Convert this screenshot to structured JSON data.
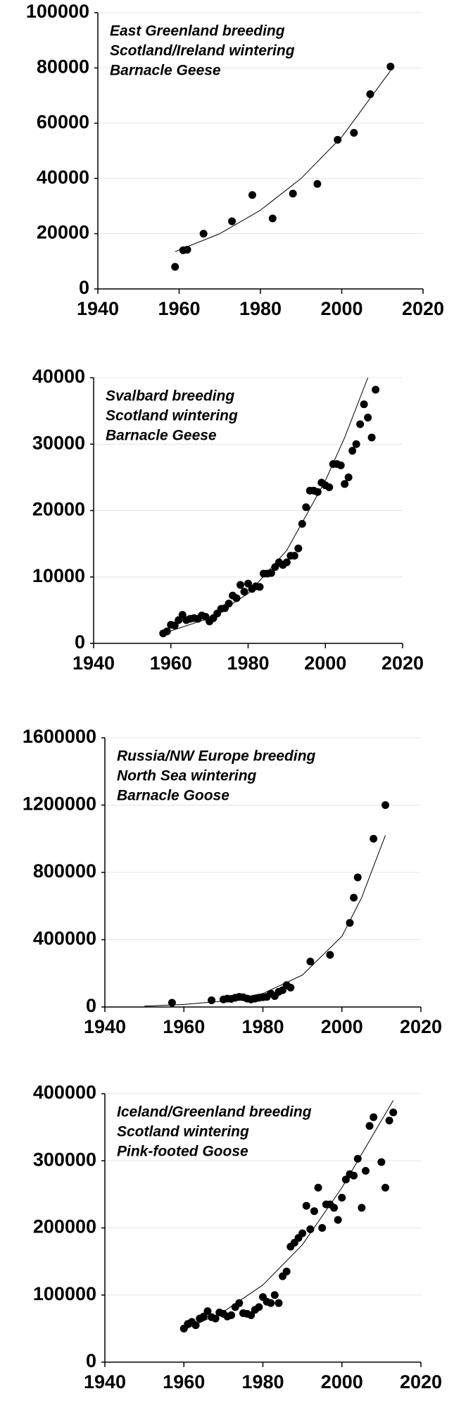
{
  "chart_data": [
    {
      "type": "scatter",
      "annotation": [
        "East Greenland breeding",
        "Scotland/Ireland wintering",
        "Barnacle Geese"
      ],
      "xlim": [
        1940,
        2020
      ],
      "xticks": [
        1940,
        1960,
        1980,
        2000,
        2020
      ],
      "ylim": [
        0,
        100000
      ],
      "yticks": [
        0,
        20000,
        40000,
        60000,
        80000,
        100000
      ],
      "grid": true,
      "color": "#000000",
      "series": [
        {
          "type": "scatter",
          "x": [
            1959,
            1961,
            1962,
            1966,
            1973,
            1978,
            1983,
            1988,
            1994,
            1999,
            2003,
            2007,
            2012
          ],
          "values": [
            8000,
            14000,
            14200,
            20000,
            24500,
            34000,
            25500,
            34500,
            38000,
            54000,
            56500,
            70500,
            80500
          ]
        },
        {
          "type": "line",
          "x": [
            1959,
            1970,
            1980,
            1990,
            2000,
            2012
          ],
          "values": [
            13500,
            20000,
            28500,
            40000,
            55000,
            79000
          ]
        }
      ]
    },
    {
      "type": "scatter",
      "annotation": [
        "Svalbard breeding",
        "Scotland wintering",
        "Barnacle Geese"
      ],
      "xlim": [
        1940,
        2020
      ],
      "xticks": [
        1940,
        1960,
        1980,
        2000,
        2020
      ],
      "ylim": [
        0,
        40000
      ],
      "yticks": [
        0,
        10000,
        20000,
        30000,
        40000
      ],
      "grid": true,
      "color": "#000000",
      "series": [
        {
          "type": "scatter",
          "x": [
            1958,
            1959,
            1960,
            1961,
            1962,
            1963,
            1964,
            1965,
            1966,
            1967,
            1968,
            1969,
            1970,
            1971,
            1972,
            1973,
            1974,
            1975,
            1976,
            1977,
            1978,
            1979,
            1980,
            1981,
            1982,
            1983,
            1984,
            1985,
            1986,
            1987,
            1988,
            1989,
            1990,
            1991,
            1992,
            1993,
            1994,
            1995,
            1996,
            1997,
            1998,
            1999,
            2000,
            2001,
            2002,
            2003,
            2004,
            2005,
            2006,
            2007,
            2008,
            2009,
            2010,
            2011,
            2012,
            2013
          ],
          "values": [
            1500,
            1800,
            2800,
            2700,
            3500,
            4300,
            3500,
            3700,
            3800,
            3700,
            4200,
            4000,
            3300,
            3800,
            4500,
            5200,
            5300,
            6000,
            7200,
            6800,
            8800,
            7800,
            9000,
            8200,
            8600,
            8500,
            10500,
            10500,
            10600,
            11500,
            12200,
            11800,
            12200,
            13200,
            13200,
            14300,
            18000,
            20500,
            23000,
            23000,
            22800,
            24200,
            23800,
            23500,
            27000,
            27000,
            26800,
            24000,
            25000,
            29000,
            30000,
            33000,
            36000,
            34000,
            31000,
            38200
          ]
        },
        {
          "type": "line",
          "x": [
            1958,
            1970,
            1980,
            1990,
            2000,
            2005,
            2011
          ],
          "values": [
            1500,
            3800,
            7500,
            14000,
            24500,
            31000,
            40000
          ]
        }
      ]
    },
    {
      "type": "scatter",
      "annotation": [
        "Russia/NW Europe breeding",
        "North Sea wintering",
        "Barnacle Goose"
      ],
      "xlim": [
        1940,
        2020
      ],
      "xticks": [
        1940,
        1960,
        1980,
        2000,
        2020
      ],
      "ylim": [
        0,
        1600000
      ],
      "yticks": [
        0,
        400000,
        800000,
        1200000,
        1600000
      ],
      "grid": true,
      "color": "#000000",
      "series": [
        {
          "type": "scatter",
          "x": [
            1957,
            1967,
            1970,
            1971,
            1972,
            1973,
            1974,
            1975,
            1976,
            1977,
            1978,
            1979,
            1980,
            1981,
            1982,
            1983,
            1984,
            1985,
            1986,
            1987,
            1992,
            1997,
            2002,
            2003,
            2004,
            2008,
            2011
          ],
          "values": [
            25000,
            40000,
            45000,
            50000,
            48000,
            55000,
            60000,
            58000,
            50000,
            45000,
            50000,
            55000,
            58000,
            60000,
            80000,
            65000,
            90000,
            100000,
            130000,
            115000,
            270000,
            310000,
            500000,
            650000,
            770000,
            1000000,
            1200000
          ]
        },
        {
          "type": "line",
          "x": [
            1950,
            1960,
            1970,
            1980,
            1990,
            2000,
            2005,
            2011
          ],
          "values": [
            5000,
            15000,
            35000,
            80000,
            190000,
            420000,
            650000,
            1020000
          ]
        }
      ]
    },
    {
      "type": "scatter",
      "annotation": [
        "Iceland/Greenland breeding",
        "Scotland wintering",
        "Pink-footed Goose"
      ],
      "xlim": [
        1940,
        2020
      ],
      "xticks": [
        1940,
        1960,
        1980,
        2000,
        2020
      ],
      "ylim": [
        0,
        400000
      ],
      "yticks": [
        0,
        100000,
        200000,
        300000,
        400000
      ],
      "grid": true,
      "color": "#000000",
      "series": [
        {
          "type": "scatter",
          "x": [
            1960,
            1961,
            1962,
            1963,
            1964,
            1965,
            1966,
            1967,
            1968,
            1969,
            1970,
            1971,
            1972,
            1973,
            1974,
            1975,
            1976,
            1977,
            1978,
            1979,
            1980,
            1981,
            1982,
            1983,
            1984,
            1985,
            1986,
            1987,
            1988,
            1989,
            1990,
            1991,
            1992,
            1993,
            1994,
            1995,
            1996,
            1997,
            1998,
            1999,
            2000,
            2001,
            2002,
            2003,
            2004,
            2005,
            2006,
            2007,
            2008,
            2010,
            2011,
            2012,
            2013
          ],
          "values": [
            50000,
            57000,
            60000,
            55000,
            65000,
            68000,
            76000,
            67000,
            65000,
            74000,
            72000,
            68000,
            70000,
            82000,
            88000,
            73000,
            72000,
            70000,
            78000,
            82000,
            97000,
            90000,
            88000,
            100000,
            88000,
            128000,
            135000,
            172000,
            178000,
            185000,
            192000,
            233000,
            198000,
            225000,
            260000,
            200000,
            235000,
            235000,
            230000,
            212000,
            245000,
            272000,
            280000,
            278000,
            303000,
            230000,
            285000,
            352000,
            365000,
            298000,
            260000,
            360000,
            372000
          ]
        },
        {
          "type": "line",
          "x": [
            1960,
            1970,
            1980,
            1990,
            2000,
            2013
          ],
          "values": [
            48000,
            75000,
            115000,
            175000,
            260000,
            390000
          ]
        }
      ]
    }
  ]
}
